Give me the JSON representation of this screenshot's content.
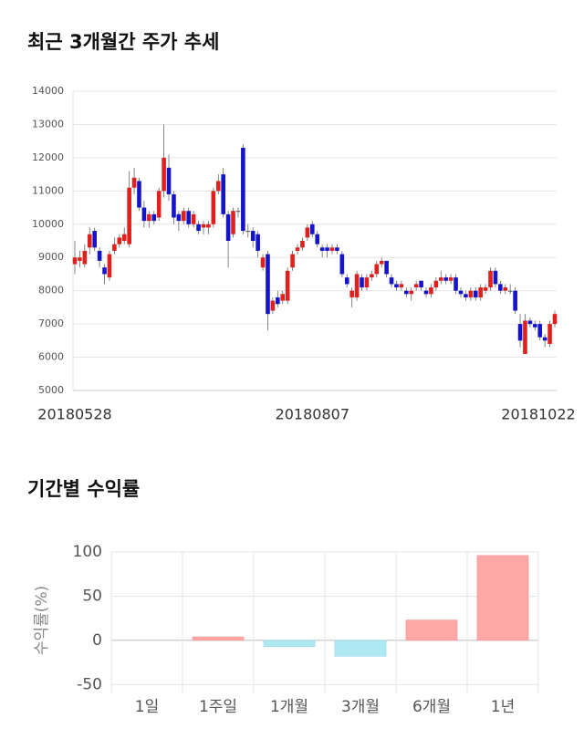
{
  "chart_data": [
    {
      "type": "candlestick",
      "title": "최근 3개월간 주가 추세",
      "categories": [
        "20180528",
        null,
        null,
        null,
        null,
        null,
        null,
        null,
        null,
        null,
        null,
        null,
        null,
        null,
        null,
        null,
        null,
        null,
        null,
        null,
        null,
        null,
        null,
        null,
        null,
        null,
        null,
        null,
        null,
        null,
        null,
        null,
        null,
        null,
        null,
        null,
        null,
        null,
        null,
        null,
        null,
        null,
        null,
        null,
        null,
        null,
        null,
        null,
        "20180807",
        null,
        null,
        null,
        null,
        null,
        null,
        null,
        null,
        null,
        null,
        null,
        null,
        null,
        null,
        null,
        null,
        null,
        null,
        null,
        null,
        null,
        null,
        null,
        null,
        null,
        null,
        null,
        null,
        null,
        null,
        null,
        null,
        null,
        null,
        null,
        null,
        null,
        null,
        null,
        null,
        null,
        null,
        null,
        null,
        null,
        null,
        null,
        null,
        "20181022"
      ],
      "open": [
        8800,
        8900,
        8800,
        9300,
        9800,
        9200,
        8700,
        8400,
        9200,
        9400,
        9500,
        9400,
        11100,
        11300,
        10500,
        10100,
        10300,
        10200,
        11000,
        11700,
        10900,
        10300,
        10100,
        10400,
        10000,
        10000,
        9900,
        9900,
        10000,
        11000,
        11500,
        10300,
        9700,
        10400,
        12300,
        9800,
        9800,
        9700,
        8700,
        9100,
        7400,
        7800,
        7700,
        7700,
        8700,
        9200,
        9300,
        9600,
        10000,
        9700,
        9300,
        9300,
        9200,
        9300,
        9100,
        8400,
        7800,
        7800,
        8400,
        8100,
        8400,
        8500,
        8800,
        8900,
        8400,
        8200,
        8100,
        8000,
        7900,
        8100,
        8300,
        8000,
        7900,
        8100,
        8300,
        8400,
        8300,
        8400,
        8000,
        7900,
        7800,
        8000,
        7800,
        8000,
        8100,
        8600,
        8200,
        8000,
        8000,
        8000,
        7000,
        6100,
        7100,
        7000,
        7000,
        6600,
        6400,
        7000
      ],
      "close": [
        9000,
        9000,
        9200,
        9700,
        9300,
        8900,
        8500,
        9100,
        9400,
        9600,
        9700,
        11100,
        11400,
        10500,
        10100,
        10300,
        10100,
        11000,
        12000,
        10900,
        10200,
        10100,
        10400,
        10000,
        10300,
        9800,
        10000,
        10000,
        11000,
        11300,
        10300,
        9500,
        10400,
        10400,
        9800,
        9800,
        9500,
        9200,
        9000,
        7300,
        7700,
        7600,
        7900,
        8600,
        9100,
        9300,
        9500,
        9900,
        9700,
        9400,
        9200,
        9200,
        9300,
        9200,
        8500,
        8200,
        8000,
        8500,
        8100,
        8400,
        8500,
        8800,
        8900,
        8500,
        8200,
        8100,
        8200,
        7900,
        8000,
        8200,
        8100,
        7900,
        8100,
        8300,
        8400,
        8300,
        8400,
        8000,
        7900,
        7800,
        8000,
        7800,
        8100,
        8100,
        8600,
        8200,
        8000,
        8100,
        8000,
        7400,
        6500,
        7100,
        7000,
        6900,
        6600,
        6500,
        7000,
        7300
      ],
      "high": [
        9500,
        9200,
        9400,
        9900,
        9900,
        9300,
        8800,
        9200,
        9600,
        9700,
        9900,
        11600,
        11700,
        11400,
        10700,
        10400,
        10400,
        11100,
        13000,
        12100,
        11000,
        10400,
        10500,
        10500,
        10400,
        10100,
        10100,
        10100,
        11100,
        11500,
        11700,
        10400,
        10500,
        10500,
        12400,
        10000,
        9900,
        9800,
        9100,
        9200,
        7800,
        8000,
        8000,
        8700,
        9200,
        9400,
        9600,
        10000,
        10100,
        9800,
        9400,
        9400,
        9400,
        9400,
        9200,
        8500,
        8100,
        8600,
        8500,
        8500,
        8600,
        8900,
        9000,
        8900,
        8500,
        8300,
        8300,
        8100,
        8100,
        8300,
        8300,
        8100,
        8200,
        8400,
        8600,
        8500,
        8500,
        8500,
        8100,
        8000,
        8100,
        8100,
        8200,
        8200,
        8700,
        8700,
        8300,
        8200,
        8200,
        8100,
        7300,
        7300,
        7200,
        7100,
        7100,
        6700,
        7100,
        7400
      ],
      "low": [
        8500,
        8700,
        8700,
        9100,
        9200,
        8700,
        8200,
        8300,
        9100,
        9300,
        9400,
        9300,
        10900,
        10400,
        9900,
        9900,
        10000,
        10100,
        10800,
        10700,
        10000,
        9800,
        10000,
        9900,
        9900,
        9700,
        9700,
        9700,
        9900,
        10900,
        10200,
        8700,
        9600,
        10200,
        9700,
        9600,
        9300,
        9000,
        8600,
        6800,
        7300,
        7500,
        7600,
        7600,
        8600,
        9100,
        9200,
        9500,
        9600,
        9300,
        9000,
        9000,
        9100,
        9100,
        8400,
        8100,
        7500,
        7700,
        8000,
        8000,
        8300,
        8400,
        8700,
        8400,
        8100,
        8000,
        8000,
        7800,
        7700,
        8000,
        8000,
        7800,
        7800,
        8000,
        8200,
        8200,
        8200,
        7900,
        7800,
        7700,
        7700,
        7700,
        7700,
        7900,
        8000,
        8100,
        7900,
        7900,
        7900,
        7300,
        6300,
        6100,
        6900,
        6800,
        6500,
        6300,
        6300,
        6900
      ],
      "up_color": "#e0201c",
      "down_color": "#1414c8",
      "ylim": [
        5000,
        14000
      ],
      "yticks": [
        5000,
        6000,
        7000,
        8000,
        9000,
        10000,
        11000,
        12000,
        13000,
        14000
      ],
      "grid": true
    },
    {
      "type": "bar",
      "title": "기간별 수익률",
      "y_label": "수익률(%)",
      "categories": [
        "1일",
        "1주일",
        "1개월",
        "3개월",
        "6개월",
        "1년"
      ],
      "values": [
        0,
        4,
        -7,
        -18,
        23,
        96
      ],
      "positive_color": "#ffa8a8",
      "negative_color": "#aee9f3",
      "ylim": [
        -60,
        100
      ],
      "yticks": [
        -50,
        0,
        50,
        100
      ],
      "grid": true
    }
  ]
}
